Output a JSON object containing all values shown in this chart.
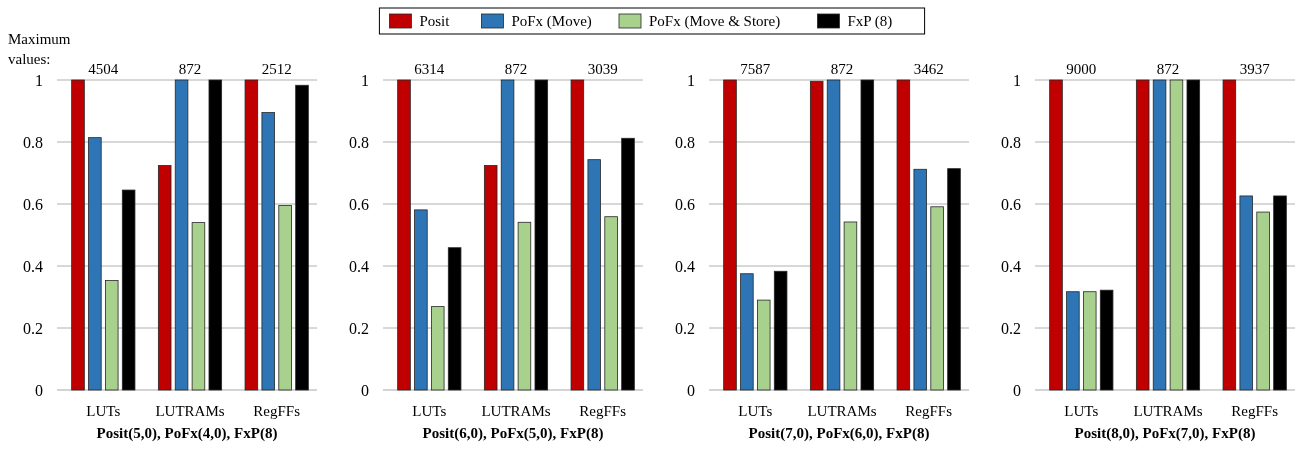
{
  "chart_data": [
    {
      "type": "bar",
      "xlabel": "Posit(5,0), PoFx(4,0), FxP(8)",
      "categories": [
        "LUTs",
        "LUTRAMs",
        "RegFFs"
      ],
      "ylim": [
        0,
        1
      ],
      "yticks": [
        0,
        0.2,
        0.4,
        0.6,
        0.8,
        1
      ],
      "grid": "y",
      "legend": "top",
      "series": [
        {
          "name": "Posit",
          "color": "#c00000",
          "values": [
            1,
            0.724,
            1
          ]
        },
        {
          "name": "PoFx (Move)",
          "color": "#2e75b6",
          "values": [
            0.814,
            1,
            0.895
          ]
        },
        {
          "name": "PoFx (Move & Store)",
          "color": "#a9d18e",
          "values": [
            0.353,
            0.54,
            0.595
          ]
        },
        {
          "name": "FxP (8)",
          "color": "#000000",
          "values": [
            0.645,
            1,
            0.983
          ]
        }
      ],
      "annotations": [
        "Maximum values:",
        "4504",
        "872",
        "2512"
      ]
    },
    {
      "type": "bar",
      "xlabel": "Posit(6,0), PoFx(5,0), FxP(8)",
      "categories": [
        "LUTs",
        "LUTRAMs",
        "RegFFs"
      ],
      "ylim": [
        0,
        1
      ],
      "yticks": [
        0,
        0.2,
        0.4,
        0.6,
        0.8,
        1
      ],
      "grid": "y",
      "series": [
        {
          "color": "#c00000",
          "values": [
            1,
            0.724,
            1
          ]
        },
        {
          "color": "#2e75b6",
          "values": [
            0.581,
            1,
            0.743
          ]
        },
        {
          "color": "#a9d18e",
          "values": [
            0.269,
            0.541,
            0.559
          ]
        },
        {
          "color": "#000000",
          "values": [
            0.459,
            1,
            0.812
          ]
        }
      ],
      "annotations": [
        "6314",
        "872",
        "3039"
      ]
    },
    {
      "type": "bar",
      "xlabel": "Posit(7,0), PoFx(6,0), FxP(8)",
      "categories": [
        "LUTs",
        "LUTRAMs",
        "RegFFs"
      ],
      "ylim": [
        0,
        1
      ],
      "yticks": [
        0,
        0.2,
        0.4,
        0.6,
        0.8,
        1
      ],
      "grid": "y",
      "series": [
        {
          "color": "#c00000",
          "values": [
            1,
            0.996,
            1
          ]
        },
        {
          "color": "#2e75b6",
          "values": [
            0.375,
            1,
            0.712
          ]
        },
        {
          "color": "#a9d18e",
          "values": [
            0.29,
            0.542,
            0.591
          ]
        },
        {
          "color": "#000000",
          "values": [
            0.383,
            1,
            0.714
          ]
        }
      ],
      "annotations": [
        "7587",
        "872",
        "3462"
      ]
    },
    {
      "type": "bar",
      "xlabel": "Posit(8,0), PoFx(7,0), FxP(8)",
      "categories": [
        "LUTs",
        "LUTRAMs",
        "RegFFs"
      ],
      "ylim": [
        0,
        1
      ],
      "yticks": [
        0,
        0.2,
        0.4,
        0.6,
        0.8,
        1
      ],
      "grid": "y",
      "series": [
        {
          "color": "#c00000",
          "values": [
            1,
            1,
            1
          ]
        },
        {
          "color": "#2e75b6",
          "values": [
            0.317,
            1,
            0.626
          ]
        },
        {
          "color": "#a9d18e",
          "values": [
            0.317,
            1,
            0.574
          ]
        },
        {
          "color": "#000000",
          "values": [
            0.322,
            1,
            0.626
          ]
        }
      ],
      "annotations": [
        "9000",
        "872",
        "3937"
      ]
    }
  ]
}
